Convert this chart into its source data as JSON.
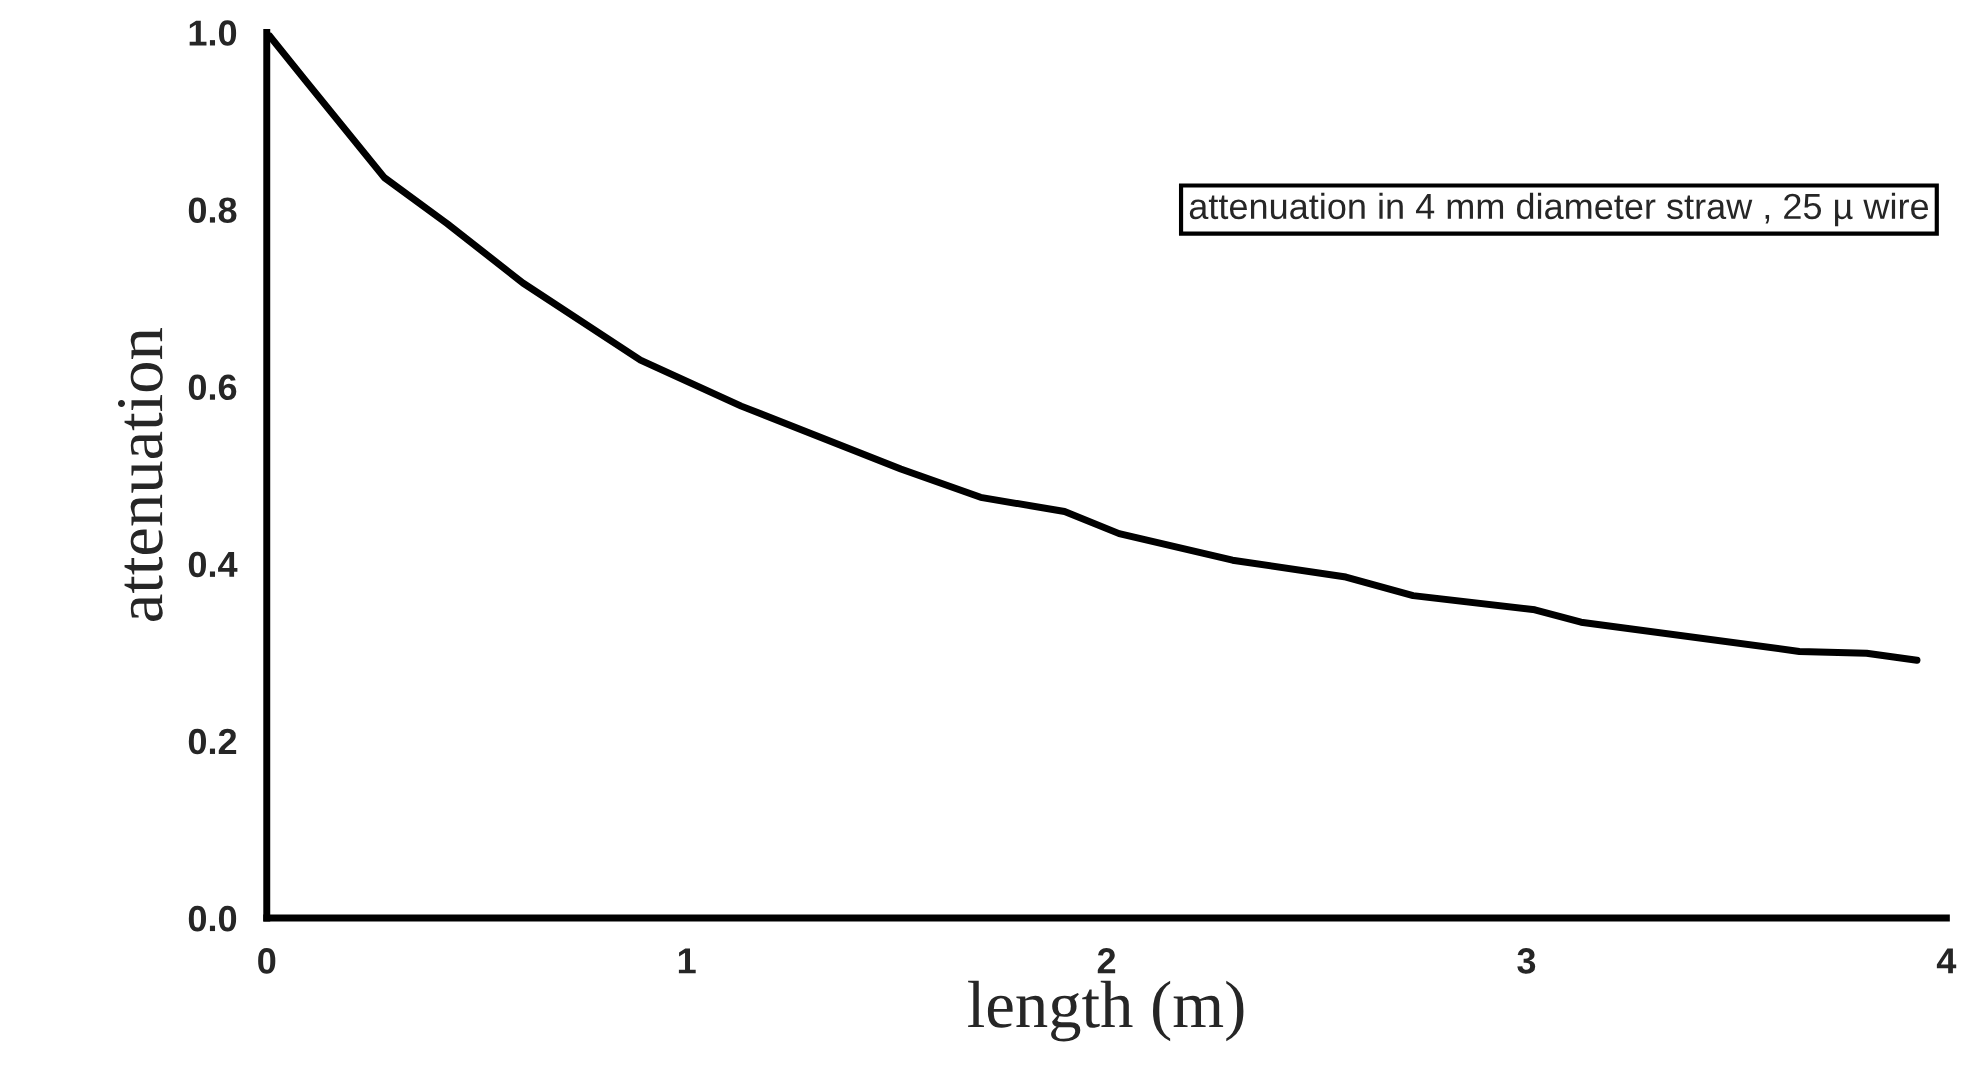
{
  "chart_data": {
    "type": "line",
    "xlabel": "length (m)",
    "ylabel": "attenuation",
    "annotations": [
      "attenuation in 4 mm diameter straw , 25 µ wire"
    ],
    "x": [
      0,
      0.09,
      0.28,
      0.43,
      0.61,
      0.89,
      1.13,
      1.51,
      1.7,
      1.9,
      2.03,
      2.3,
      2.57,
      2.73,
      3.02,
      3.13,
      3.65,
      3.81,
      3.93
    ],
    "series": [
      {
        "color": "#000000",
        "values": [
          1.0,
          0.947,
          0.836,
          0.784,
          0.717,
          0.63,
          0.578,
          0.507,
          0.475,
          0.459,
          0.434,
          0.404,
          0.385,
          0.364,
          0.348,
          0.334,
          0.301,
          0.299,
          0.291
        ]
      }
    ],
    "xlim": [
      0,
      4
    ],
    "ylim": [
      0,
      1
    ],
    "xticks": [
      0,
      1,
      2,
      3,
      4
    ],
    "yticks": [
      {
        "value": 0,
        "label": "0.0"
      },
      {
        "value": 0.2,
        "label": "0.2"
      },
      {
        "value": 0.4,
        "label": "0.4"
      },
      {
        "value": 0.6,
        "label": "0.6"
      },
      {
        "value": 0.8,
        "label": "0.8"
      },
      {
        "value": 1,
        "label": "1.0"
      }
    ],
    "grid": false,
    "legend": false,
    "marker": "none",
    "line_style": "solid"
  }
}
